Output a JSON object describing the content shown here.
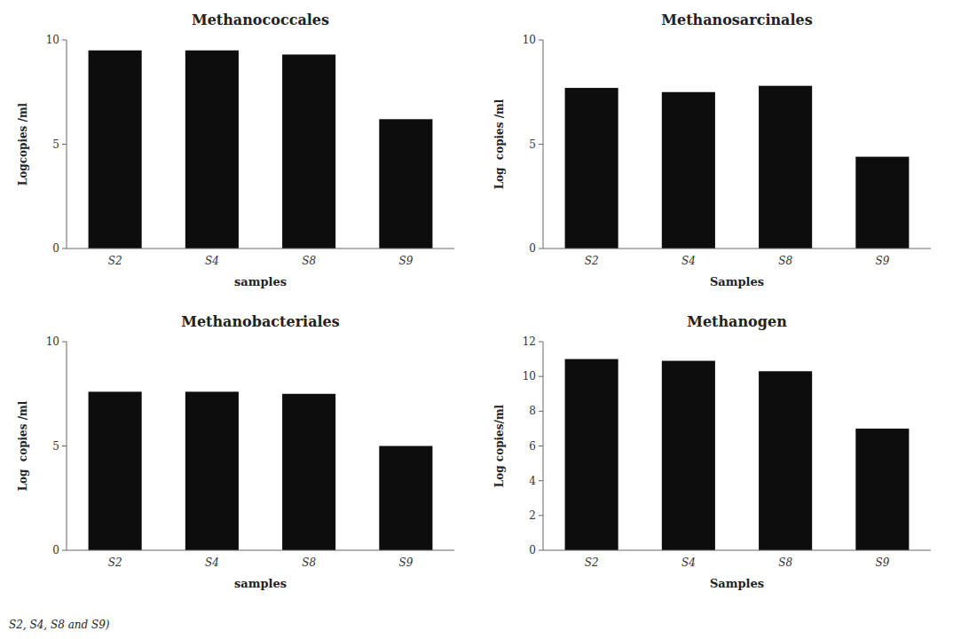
{
  "chart_data": [
    {
      "type": "bar",
      "title": "Methanococcales",
      "xlabel": "samples",
      "ylabel": "Logcopies /ml",
      "categories": [
        "S2",
        "S4",
        "S8",
        "S9"
      ],
      "values": [
        9.5,
        9.5,
        9.3,
        6.2
      ],
      "color": "#0d0d0d",
      "ylim": [
        0,
        10
      ],
      "yticks": [
        0,
        5,
        10
      ],
      "grid": false
    },
    {
      "type": "bar",
      "title": "Methanosarcinales",
      "xlabel": "Samples",
      "ylabel": "Log  copies /ml",
      "categories": [
        "S2",
        "S4",
        "S8",
        "S9"
      ],
      "values": [
        7.7,
        7.5,
        7.8,
        4.4
      ],
      "color": "#0d0d0d",
      "ylim": [
        0,
        10
      ],
      "yticks": [
        0,
        5,
        10
      ],
      "grid": false
    },
    {
      "type": "bar",
      "title": "Methanobacteriales",
      "xlabel": "samples",
      "ylabel": "Log  copies /ml",
      "categories": [
        "S2",
        "S4",
        "S8",
        "S9"
      ],
      "values": [
        7.6,
        7.6,
        7.5,
        5.0
      ],
      "color": "#0d0d0d",
      "ylim": [
        0,
        10
      ],
      "yticks": [
        0,
        5,
        10
      ],
      "grid": false
    },
    {
      "type": "bar",
      "title": "Methanogen",
      "xlabel": "Samples",
      "ylabel": "Log copies/ml",
      "categories": [
        "S2",
        "S4",
        "S8",
        "S9"
      ],
      "values": [
        11.0,
        10.9,
        10.3,
        7.0
      ],
      "color": "#0d0d0d",
      "ylim": [
        0,
        12
      ],
      "yticks": [
        0,
        2,
        4,
        6,
        8,
        10,
        12
      ],
      "grid": false
    }
  ],
  "footer": "S2, S4, S8 and S9)"
}
